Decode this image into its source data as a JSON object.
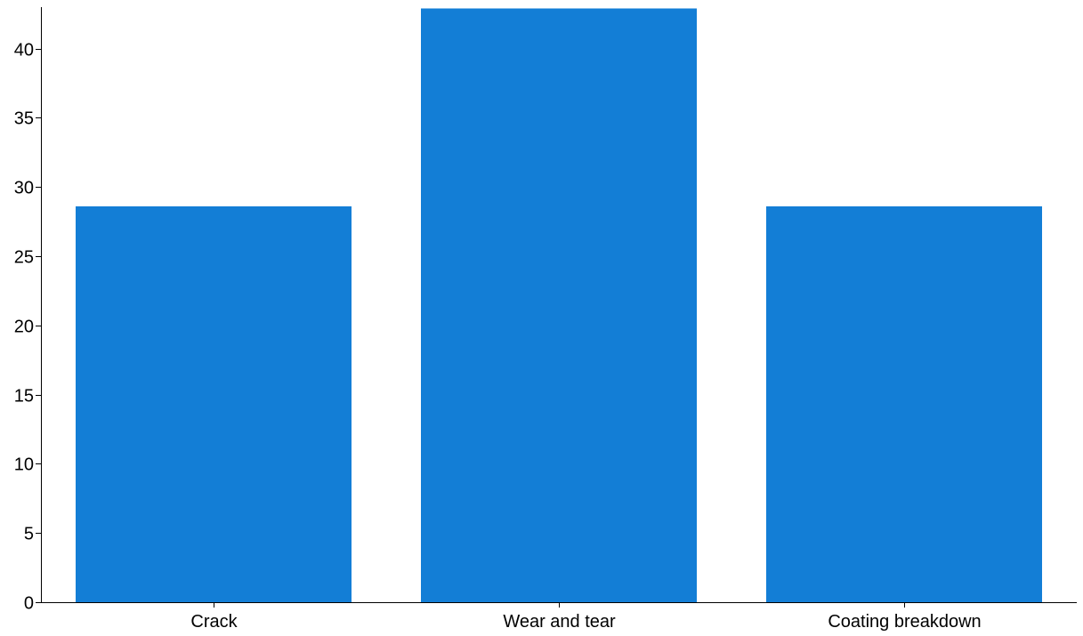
{
  "chart_data": {
    "type": "bar",
    "title": "",
    "xlabel": "",
    "ylabel": "",
    "categories": [
      "Crack",
      "Wear and tear",
      "Coating breakdown"
    ],
    "values": [
      28.6,
      42.9,
      28.6
    ],
    "ylim": [
      0,
      43
    ],
    "yticks": [
      0,
      5,
      10,
      15,
      20,
      25,
      30,
      35,
      40
    ],
    "grid": false,
    "legend": "none",
    "colors": {
      "bar": "#137ed6",
      "axis": "#000000",
      "background": "#ffffff"
    }
  }
}
